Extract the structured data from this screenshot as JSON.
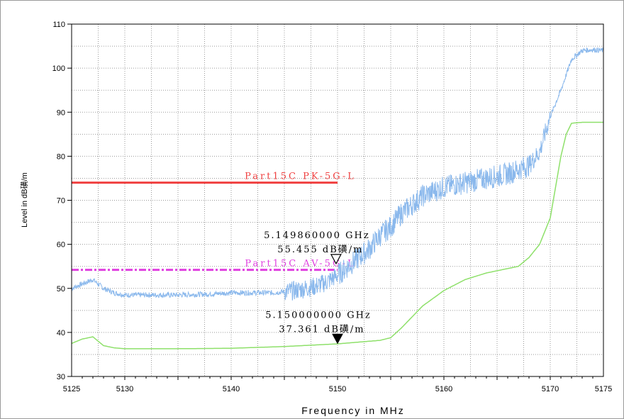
{
  "chart_data": {
    "type": "line",
    "xlabel": "Frequency in MHz",
    "ylabel": "Level in dB磺/m",
    "xlim": [
      5125,
      5175
    ],
    "ylim": [
      30,
      110
    ],
    "x_ticks": [
      5125,
      5130,
      5140,
      5150,
      5160,
      5170,
      5175
    ],
    "y_ticks": [
      30,
      40,
      50,
      60,
      70,
      80,
      90,
      100,
      110
    ],
    "grid": true,
    "limit_lines": [
      {
        "name": "Part15C PK-5G-L",
        "x": [
          5125,
          5150
        ],
        "y": 74,
        "color": "#f04040",
        "style": "solid"
      },
      {
        "name": "Part15C AV-5G-L",
        "x": [
          5125,
          5150
        ],
        "y": 54.2,
        "color": "#e040e0",
        "style": "dashdot"
      }
    ],
    "series": [
      {
        "color": "#8ab8ec",
        "noisy": true,
        "x": [
          5125,
          5126,
          5127,
          5128,
          5129,
          5130,
          5132,
          5135,
          5138,
          5140,
          5142,
          5144,
          5146,
          5148,
          5149,
          5150,
          5151,
          5152,
          5153,
          5154,
          5155,
          5156,
          5157,
          5158,
          5159,
          5160,
          5161,
          5162,
          5163,
          5164,
          5165,
          5166,
          5167,
          5168,
          5169,
          5170,
          5171,
          5172,
          5173,
          5174,
          5175
        ],
        "y": [
          50,
          51,
          52,
          50,
          49,
          48.5,
          48.5,
          48.5,
          48.7,
          49,
          49,
          49,
          49.5,
          50.5,
          51.5,
          53,
          55,
          57,
          59,
          62,
          64,
          67,
          69,
          71,
          72,
          73,
          73.5,
          74,
          74.5,
          75,
          75.5,
          76,
          77,
          78,
          81,
          89,
          95,
          102,
          104,
          104.2,
          104
        ]
      },
      {
        "color": "#8ee06a",
        "noisy": false,
        "x": [
          5125,
          5126,
          5127,
          5128,
          5129,
          5130,
          5135,
          5140,
          5145,
          5150,
          5152,
          5154,
          5155,
          5156,
          5157,
          5158,
          5160,
          5162,
          5164,
          5166,
          5167,
          5168,
          5169,
          5170,
          5170.5,
          5171,
          5171.5,
          5172,
          5173,
          5175
        ],
        "y": [
          37.5,
          38.5,
          39,
          37,
          36.5,
          36.3,
          36.3,
          36.4,
          36.8,
          37.4,
          37.8,
          38.2,
          38.8,
          41,
          43.5,
          46,
          49.5,
          52,
          53.5,
          54.5,
          55,
          57,
          60,
          66,
          73,
          80,
          85,
          87.5,
          87.7,
          87.7
        ]
      }
    ],
    "markers": [
      {
        "frequency_label": "5.149860000 GHz",
        "level_label": "55.455 dB磺/m",
        "x": 5149.86,
        "y": 55.455,
        "style": "open-triangle-down"
      },
      {
        "frequency_label": "5.150000000 GHz",
        "level_label": "37.361 dB磺/m",
        "x": 5150.0,
        "y": 37.361,
        "style": "filled-triangle-down"
      }
    ]
  }
}
